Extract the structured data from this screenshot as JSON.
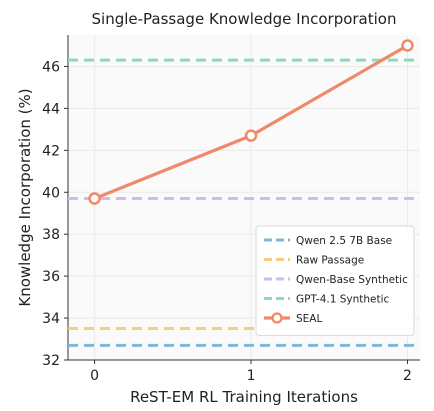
{
  "chart_data": {
    "type": "line",
    "title": "Single-Passage Knowledge Incorporation",
    "xlabel": "ReST-EM RL Training Iterations",
    "ylabel": "Knowledge Incorporation (%)",
    "x": [
      0,
      1,
      2
    ],
    "xticks": [
      "0",
      "1",
      "2"
    ],
    "yticks": [
      "32",
      "34",
      "36",
      "38",
      "40",
      "42",
      "44",
      "46"
    ],
    "xlim": [
      -0.17,
      2.08
    ],
    "ylim": [
      32,
      47.5
    ],
    "grid": true,
    "legend_position": "lower-right",
    "baselines": [
      {
        "name": "Qwen 2.5 7B Base",
        "value": 32.7,
        "color": "#7fb8d6"
      },
      {
        "name": "Raw Passage",
        "value": 33.5,
        "color": "#f8cb7f"
      },
      {
        "name": "Qwen-Base Synthetic",
        "value": 39.7,
        "color": "#c6c0ea"
      },
      {
        "name": "GPT-4.1 Synthetic",
        "value": 46.3,
        "color": "#8fd9c1"
      }
    ],
    "series": [
      {
        "name": "SEAL",
        "values": [
          39.7,
          42.7,
          47.0
        ],
        "color": "#f0896a"
      }
    ]
  }
}
